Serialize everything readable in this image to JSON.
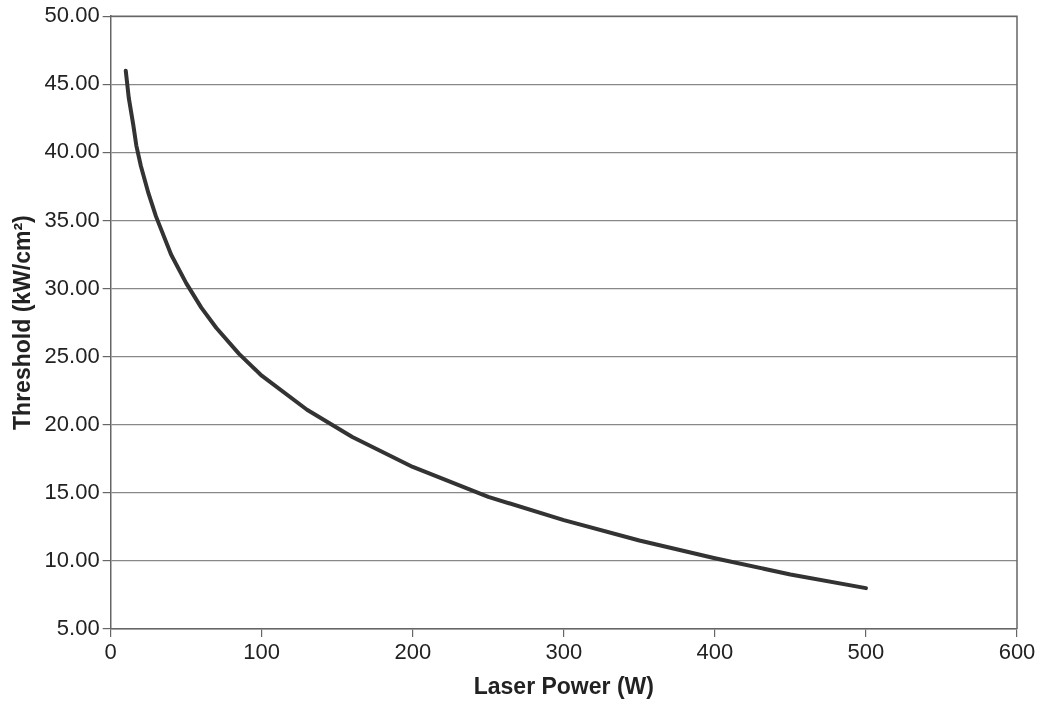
{
  "chart_data": {
    "type": "line",
    "xlabel": "Laser Power (W)",
    "ylabel": "Threshold (kW/cm²)",
    "x": [
      10,
      12,
      15,
      17,
      20,
      25,
      30,
      40,
      50,
      60,
      70,
      85,
      100,
      130,
      160,
      200,
      250,
      300,
      350,
      400,
      450,
      500
    ],
    "series": [
      {
        "color": "#333333",
        "values": [
          46.0,
          44.0,
          42.0,
          40.5,
          39.0,
          37.0,
          35.3,
          32.5,
          30.4,
          28.6,
          27.1,
          25.2,
          23.6,
          21.1,
          19.1,
          16.9,
          14.7,
          13.0,
          11.5,
          10.2,
          9.0,
          8.0
        ]
      }
    ],
    "xlim": [
      0,
      600
    ],
    "xticks": [
      0,
      100,
      200,
      300,
      400,
      500,
      600
    ],
    "ylim": [
      5,
      50
    ],
    "yticks": [
      {
        "value": 5,
        "label": "5.00"
      },
      {
        "value": 10,
        "label": "10.00"
      },
      {
        "value": 15,
        "label": "15.00"
      },
      {
        "value": 20,
        "label": "20.00"
      },
      {
        "value": 25,
        "label": "25.00"
      },
      {
        "value": 30,
        "label": "30.00"
      },
      {
        "value": 35,
        "label": "35.00"
      },
      {
        "value": 40,
        "label": "40.00"
      },
      {
        "value": 45,
        "label": "45.00"
      },
      {
        "value": 50,
        "label": "50.00"
      }
    ],
    "grid": "y",
    "legend": false,
    "marker": "none",
    "line_style": "solid"
  }
}
